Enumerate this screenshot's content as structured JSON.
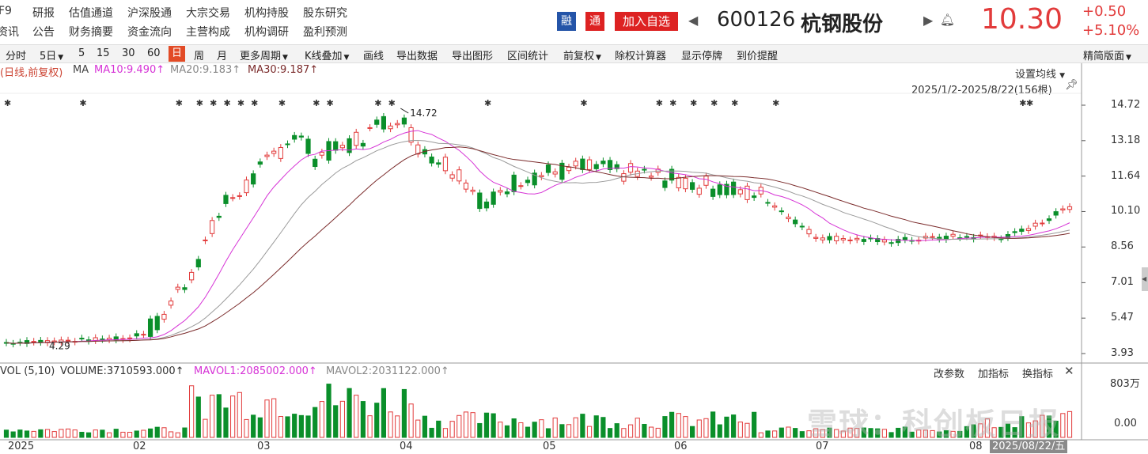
{
  "nav": {
    "row1": [
      "F9",
      "研报",
      "估值通道",
      "沪深股通",
      "大宗交易",
      "机构持股",
      "股东研究"
    ],
    "row2": [
      "资讯",
      "公告",
      "财务摘要",
      "资金流向",
      "主营构成",
      "机构调研",
      "盈利预测"
    ]
  },
  "stock": {
    "tag_rong": "融",
    "tag_tong": "通",
    "add_watch": "加入自选",
    "code": "600126",
    "name": "杭钢股份",
    "price": "10.30",
    "change": "+0.50",
    "change_pct": "+5.10%"
  },
  "toolbar": {
    "periods": [
      "分时",
      "5日",
      "5",
      "15",
      "30",
      "60",
      "日",
      "周",
      "月"
    ],
    "active_period": "日",
    "more_period": "更多周期",
    "kline_overlay": "K线叠加",
    "draw_line": "画线",
    "export_data": "导出数据",
    "export_chart": "导出图形",
    "range_stats": "区间统计",
    "adjust": "前复权",
    "exrights_calc": "除权计算器",
    "show_suspended": "显示停牌",
    "price_alert": "到价提醒",
    "layout": "精简版面"
  },
  "chart": {
    "legend_prefix": "(日线,前复权)",
    "ma_label": "MA",
    "ma10": "MA10:9.490↑",
    "ma20": "MA20:9.183↑",
    "ma30": "MA30:9.187↑",
    "set_ma": "设置均线",
    "date_range": "2025/1/2-2025/8/22(156根)",
    "high_label": "14.72",
    "low_label": "4.29",
    "y_ticks": [
      "14.72",
      "13.18",
      "11.64",
      "10.10",
      "8.56",
      "7.01",
      "5.47",
      "3.93"
    ],
    "colors": {
      "up": "#e23b3b",
      "down": "#0a8f2a",
      "ma10": "#d633d6",
      "ma20": "#9a9a9a",
      "ma30": "#7a2a2a"
    }
  },
  "volume": {
    "label": "VOL (5,10)",
    "volume": "VOLUME:3710593.000↑",
    "mavol1": "MAVOL1:2085002.000↑",
    "mavol2": "MAVOL2:2031122.000↑",
    "change_params": "改参数",
    "add_indicator": "加指标",
    "switch_indicator": "换指标",
    "y_top": "803万",
    "y_bottom": "0.00"
  },
  "x_axis": {
    "labels": [
      "2025",
      "02",
      "03",
      "04",
      "05",
      "06",
      "07",
      "08"
    ],
    "cursor_date": "2025/08/22/五"
  },
  "watermark": "雪球：科创板日报"
}
